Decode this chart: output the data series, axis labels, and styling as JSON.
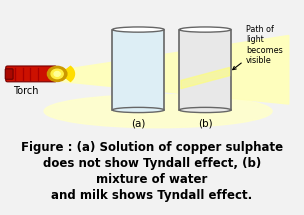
{
  "bg_color": "#f2f2f2",
  "figure_caption": "Figure : (a) Solution of copper sulphate\ndoes not show Tyndall effect, (b)\nmixture of water\nand milk shows Tyndall effect.",
  "caption_fontsize": 8.5,
  "torch_label": "Torch",
  "label_a": "(a)",
  "label_b": "(b)",
  "path_label": "Path of\nlight\nbecomes\nvisible",
  "glass_a_color": "#ddeef5",
  "glass_b_color": "#e8e8e8",
  "beam_color": "#ffffbb",
  "ellipse_color": "#ffffcc",
  "torch_body_color": "#cc1100",
  "torch_tip_color": "#aa0800",
  "torch_head_color": "#ffdd00",
  "torch_ring_color": "#bb7700"
}
